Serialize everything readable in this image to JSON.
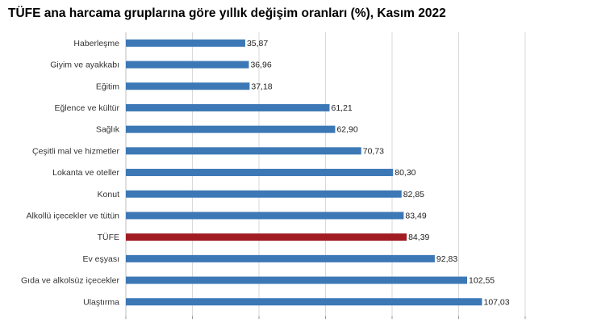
{
  "title": "TÜFE ana harcama gruplarına göre yıllık değişim oranları (%), Kasım 2022",
  "chart_data": {
    "type": "bar",
    "orientation": "horizontal",
    "categories": [
      "Haberleşme",
      "Giyim ve ayakkabı",
      "Eğitim",
      "Eğlence ve kültür",
      "Sağlık",
      "Çeşitli mal ve hizmetler",
      "Lokanta ve oteller",
      "Konut",
      "Alkollü içecekler ve tütün",
      "TÜFE",
      "Ev eşyası",
      "Gıda ve alkolsüz içecekler",
      "Ulaştırma"
    ],
    "values": [
      35.87,
      36.96,
      37.18,
      61.21,
      62.9,
      70.73,
      80.3,
      82.85,
      83.49,
      84.39,
      92.83,
      102.55,
      107.03
    ],
    "value_labels": [
      "35,87",
      "36,96",
      "37,18",
      "61,21",
      "62,90",
      "70,73",
      "80,30",
      "82,85",
      "83,49",
      "84,39",
      "92,83",
      "102,55",
      "107,03"
    ],
    "highlight_category": "TÜFE",
    "xlim": [
      0,
      120
    ],
    "xticks": [
      0,
      20,
      40,
      60,
      80,
      100,
      120
    ],
    "grid": true,
    "colors": {
      "bar": "#3c78b5",
      "highlight": "#a01c22",
      "grid": "#d9d9d9"
    }
  }
}
